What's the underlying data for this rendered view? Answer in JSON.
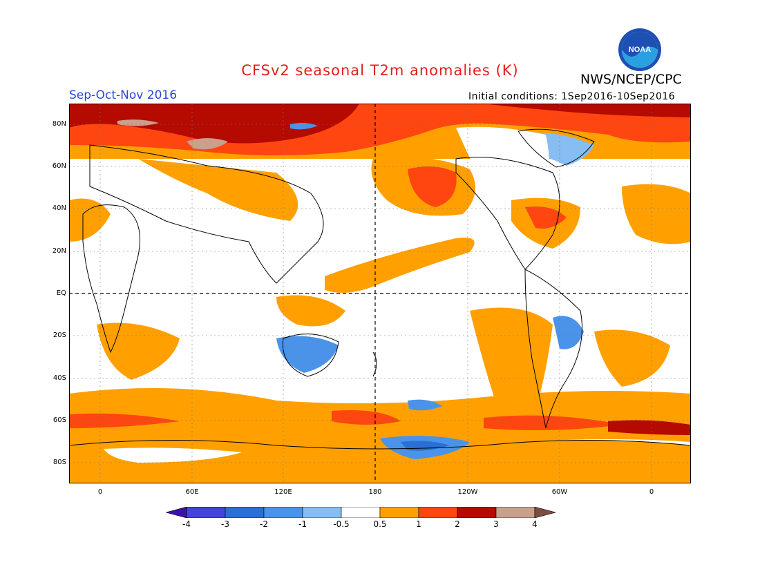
{
  "header": {
    "title": "CFSv2 seasonal T2m anomalies (K)",
    "organization": "NWS/NCEP/CPC",
    "season": "Sep-Oct-Nov 2016",
    "initial_conditions": "Initial conditions: 1Sep2016-10Sep2016",
    "logo": {
      "text": "NOAA",
      "icon": "noaa-logo"
    }
  },
  "axes": {
    "lat_labels": [
      "80N",
      "60N",
      "40N",
      "20N",
      "EQ",
      "20S",
      "40S",
      "60S",
      "80S"
    ],
    "lon_labels": [
      "0",
      "60E",
      "120E",
      "180",
      "120W",
      "60W",
      "0"
    ]
  },
  "colorbar": {
    "tick_labels": [
      "-4",
      "-3",
      "-2",
      "-1",
      "-0.5",
      "0.5",
      "1",
      "2",
      "3",
      "4"
    ],
    "colors": [
      "#3a10a8",
      "#4444d8",
      "#2a6fd6",
      "#4a93e8",
      "#86bdf2",
      "#ffffff",
      "#ffa000",
      "#ff4610",
      "#b40a00",
      "#c8a08c",
      "#7a4e40"
    ]
  }
}
